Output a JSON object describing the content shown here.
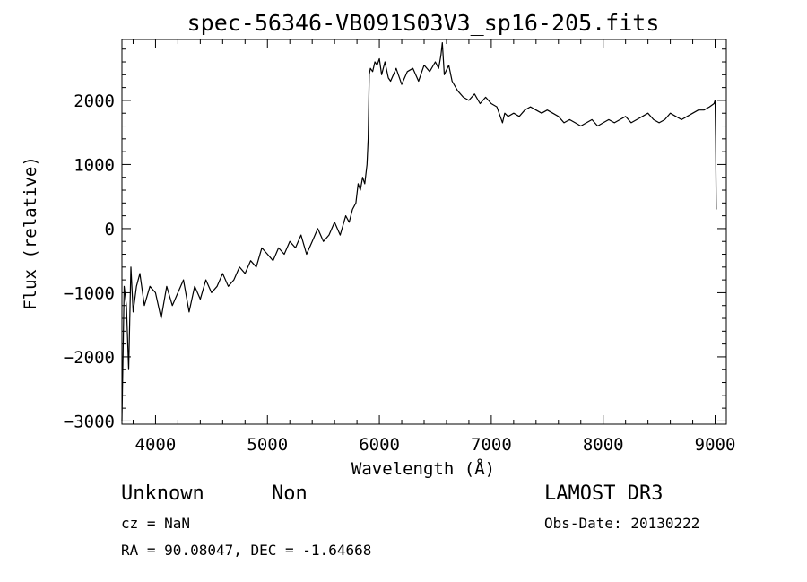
{
  "chart_data": {
    "type": "line",
    "title": "spec-56346-VB091S03V3_sp16-205.fits",
    "xlabel": "Wavelength (Å)",
    "ylabel": "Flux (relative)",
    "xlim": [
      3700,
      9100
    ],
    "ylim": [
      -3050,
      2950
    ],
    "xticks": [
      4000,
      5000,
      6000,
      7000,
      8000,
      9000
    ],
    "xtick_labels": [
      "4000",
      "5000",
      "6000",
      "7000",
      "8000",
      "9000"
    ],
    "yticks": [
      -3000,
      -2000,
      -1000,
      0,
      1000,
      2000
    ],
    "ytick_labels": [
      "−3000",
      "−2000",
      "−1000",
      "0",
      "1000",
      "2000"
    ],
    "grid": false,
    "series": [
      {
        "x": [
          3700,
          3720,
          3740,
          3760,
          3780,
          3800,
          3830,
          3860,
          3900,
          3950,
          4000,
          4050,
          4100,
          4150,
          4200,
          4250,
          4300,
          4350,
          4400,
          4450,
          4500,
          4550,
          4600,
          4650,
          4700,
          4750,
          4800,
          4850,
          4900,
          4950,
          5000,
          5050,
          5100,
          5150,
          5200,
          5250,
          5300,
          5350,
          5400,
          5450,
          5500,
          5550,
          5600,
          5650,
          5700,
          5730,
          5760,
          5790,
          5810,
          5830,
          5850,
          5870,
          5890,
          5900,
          5910,
          5920,
          5940,
          5960,
          5980,
          6000,
          6020,
          6050,
          6080,
          6100,
          6150,
          6200,
          6250,
          6300,
          6350,
          6400,
          6450,
          6500,
          6530,
          6550,
          6563,
          6580,
          6620,
          6650,
          6700,
          6750,
          6800,
          6850,
          6900,
          6950,
          7000,
          7050,
          7080,
          7100,
          7120,
          7150,
          7200,
          7250,
          7300,
          7350,
          7400,
          7450,
          7500,
          7550,
          7600,
          7650,
          7700,
          7750,
          7800,
          7850,
          7900,
          7950,
          8000,
          8050,
          8100,
          8150,
          8200,
          8250,
          8300,
          8350,
          8400,
          8450,
          8500,
          8550,
          8600,
          8650,
          8700,
          8750,
          8800,
          8850,
          8900,
          8950,
          8990,
          9000,
          9005,
          9010
        ],
        "y": [
          -3000,
          -900,
          -1200,
          -2200,
          -600,
          -1300,
          -900,
          -700,
          -1200,
          -900,
          -1000,
          -1400,
          -900,
          -1200,
          -1000,
          -800,
          -1300,
          -900,
          -1100,
          -800,
          -1000,
          -900,
          -700,
          -900,
          -800,
          -600,
          -700,
          -500,
          -600,
          -300,
          -400,
          -500,
          -300,
          -400,
          -200,
          -300,
          -100,
          -400,
          -200,
          0,
          -200,
          -100,
          100,
          -100,
          200,
          100,
          300,
          400,
          700,
          600,
          800,
          700,
          1000,
          1400,
          2400,
          2500,
          2450,
          2600,
          2550,
          2650,
          2400,
          2600,
          2350,
          2300,
          2500,
          2250,
          2450,
          2500,
          2300,
          2550,
          2450,
          2600,
          2500,
          2700,
          2900,
          2400,
          2550,
          2300,
          2150,
          2050,
          2000,
          2100,
          1950,
          2050,
          1950,
          1900,
          1750,
          1650,
          1800,
          1750,
          1800,
          1750,
          1850,
          1900,
          1850,
          1800,
          1850,
          1800,
          1750,
          1650,
          1700,
          1650,
          1600,
          1650,
          1700,
          1600,
          1650,
          1700,
          1650,
          1700,
          1750,
          1650,
          1700,
          1750,
          1800,
          1700,
          1650,
          1700,
          1800,
          1750,
          1700,
          1750,
          1800,
          1850,
          1850,
          1900,
          1950,
          2000,
          1400,
          300
        ]
      }
    ]
  },
  "annotations": {
    "object_class": "Unknown",
    "object_subclass": "Non",
    "survey": "LAMOST DR3",
    "redshift": "cz = NaN",
    "obs_date": "Obs-Date: 20130222",
    "coords": "RA =  90.08047, DEC =  -1.64668"
  }
}
